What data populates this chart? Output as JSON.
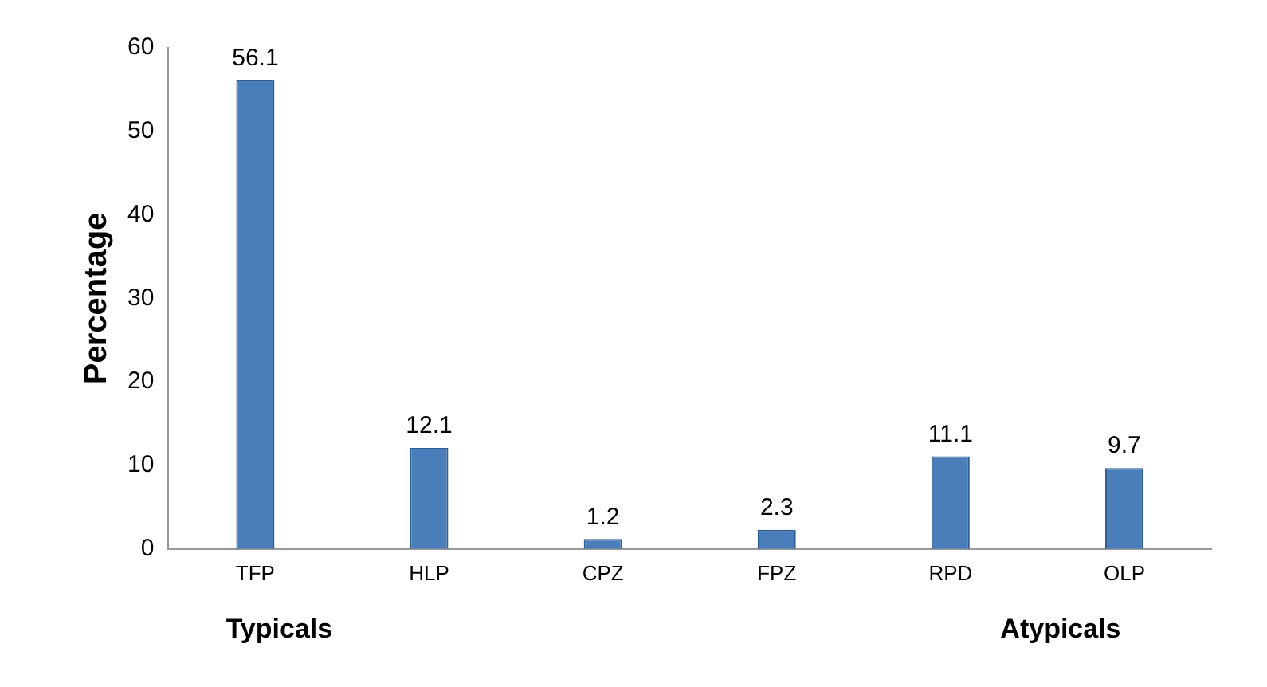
{
  "chart_data": {
    "type": "bar",
    "ylabel": "Percentage",
    "categories": [
      "TFP",
      "HLP",
      "CPZ",
      "FPZ",
      "RPD",
      "OLP"
    ],
    "values": [
      56.1,
      12.1,
      1.2,
      2.3,
      11.1,
      9.7
    ],
    "color": "#4a7ebb",
    "ylim": [
      0,
      60
    ],
    "yticks": [
      0,
      10,
      20,
      30,
      40,
      50,
      60
    ],
    "grid": false,
    "legend": false,
    "data_labels": true,
    "annotations": [
      "Typicals",
      "Atypicals"
    ]
  }
}
